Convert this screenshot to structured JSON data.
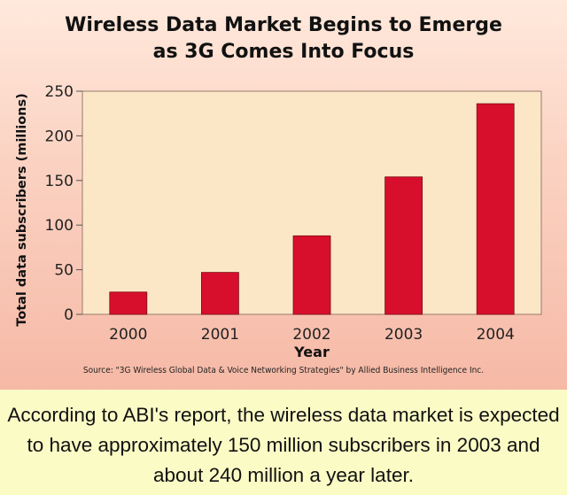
{
  "title_line1": "Wireless Data Market Begins to Emerge",
  "title_line2": "as 3G Comes Into Focus",
  "source": "Source: \"3G Wireless Global Data & Voice Networking Strategies\" by Allied Business Intelligence Inc.",
  "caption": "According to ABI's report, the wireless data market is expected to have approximately 150 million subscribers in 2003 and about 240 million a year later.",
  "colors": {
    "bar": "#d80f2c",
    "plot_bg": "#fbe7c6",
    "caption_bg": "#fbfbc6"
  },
  "chart_data": {
    "type": "bar",
    "categories": [
      "2000",
      "2001",
      "2002",
      "2003",
      "2004"
    ],
    "values": [
      25,
      47,
      88,
      154,
      236
    ],
    "xlabel": "Year",
    "ylabel": "Total data subscribers (millions)",
    "ylim": [
      0,
      250
    ],
    "yticks": [
      0,
      50,
      100,
      150,
      200,
      250
    ],
    "grid": false
  }
}
